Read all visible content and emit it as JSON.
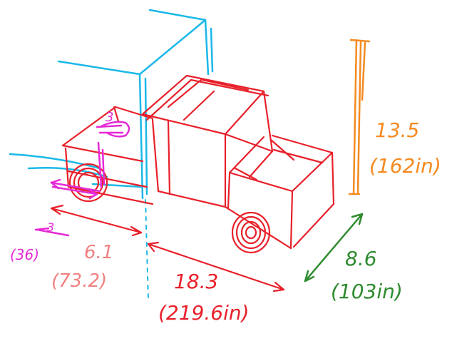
{
  "colors": {
    "truck": "#e8202a",
    "trailer": "#1ab8e8",
    "height": "#f58a1f",
    "width": "#2e8b2e",
    "hitch": "#e629d6",
    "front_overhang": "#f08080"
  },
  "labels": {
    "hitch_top": "3",
    "hitch_side": "3",
    "hitch_side_in": "(36)",
    "overhang_ft": "6.1",
    "overhang_in": "(73.2)",
    "length_ft": "18.3",
    "length_in": "(219.6in)",
    "height_ft": "13.5",
    "height_in": "(162in)",
    "width_ft": "8.6",
    "width_in": "(103in)"
  }
}
